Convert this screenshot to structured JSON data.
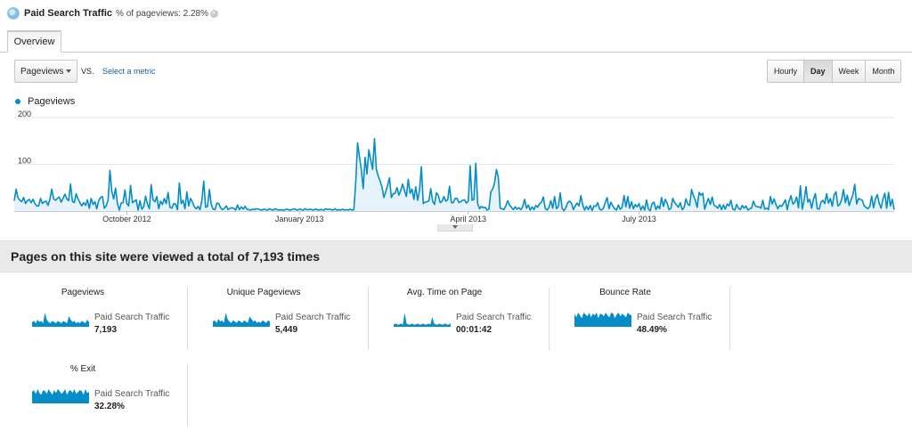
{
  "segment": {
    "title": "Paid Search Traffic",
    "subtitle": "% of pageviews: 2.28%",
    "icon": "segment-pie-icon"
  },
  "tabs": [
    {
      "label": "Overview",
      "selected": true
    }
  ],
  "metric_selector": {
    "selected": "Pageviews",
    "vs_label": "VS.",
    "select_metric_label": "Select a metric"
  },
  "granularity": {
    "options": [
      "Hourly",
      "Day",
      "Week",
      "Month"
    ],
    "selected": "Day"
  },
  "colors": {
    "series": "#058dc7",
    "area": "#e6f3fa"
  },
  "chart_data": {
    "type": "area",
    "series": [
      {
        "name": "Pageviews",
        "values": [
          22,
          47,
          28,
          23,
          20,
          29,
          16,
          22,
          25,
          18,
          25,
          16,
          11,
          11,
          27,
          16,
          20,
          21,
          12,
          25,
          47,
          26,
          23,
          27,
          30,
          19,
          27,
          36,
          26,
          22,
          58,
          21,
          18,
          37,
          26,
          18,
          11,
          18,
          12,
          24,
          6,
          27,
          14,
          20,
          5,
          22,
          29,
          31,
          6,
          11,
          23,
          87,
          42,
          26,
          49,
          16,
          2,
          17,
          18,
          45,
          16,
          11,
          55,
          18,
          21,
          24,
          2,
          22,
          4,
          9,
          32,
          15,
          5,
          56,
          24,
          20,
          31,
          5,
          21,
          14,
          27,
          16,
          40,
          8,
          6,
          16,
          15,
          3,
          60,
          16,
          23,
          5,
          41,
          11,
          27,
          19,
          9,
          5,
          10,
          3,
          23,
          64,
          8,
          10,
          46,
          14,
          4,
          3,
          17,
          16,
          7,
          3,
          6,
          11,
          3,
          6,
          7,
          6,
          2,
          13,
          3,
          9,
          4,
          10,
          4,
          3,
          2,
          4,
          3,
          5,
          4,
          3,
          2,
          4,
          3,
          2,
          5,
          3,
          2,
          5,
          3,
          2,
          3,
          2,
          2,
          4,
          3,
          2,
          3,
          5,
          3,
          2,
          4,
          3,
          2,
          5,
          3,
          3,
          4,
          2,
          3,
          4,
          2,
          3,
          3,
          2,
          5,
          3,
          4,
          3,
          2,
          5,
          2,
          3,
          2,
          4,
          2,
          3,
          2,
          4,
          2,
          3,
          60,
          146,
          116,
          88,
          48,
          115,
          79,
          131,
          109,
          89,
          155,
          89,
          75,
          64,
          52,
          29,
          41,
          55,
          71,
          29,
          37,
          38,
          50,
          34,
          44,
          58,
          44,
          31,
          68,
          38,
          47,
          25,
          52,
          23,
          44,
          95,
          16,
          19,
          20,
          22,
          48,
          21,
          14,
          39,
          34,
          18,
          21,
          31,
          21,
          24,
          53,
          18,
          18,
          27,
          27,
          18,
          20,
          23,
          24,
          17,
          21,
          97,
          23,
          25,
          102,
          16,
          5,
          10,
          7,
          8,
          2,
          4,
          41,
          47,
          60,
          89,
          72,
          6,
          5,
          3,
          11,
          22,
          13,
          8,
          3,
          9,
          4,
          7,
          3,
          9,
          25,
          6,
          13,
          2,
          9,
          3,
          12,
          8,
          16,
          19,
          30,
          6,
          2,
          8,
          22,
          6,
          31,
          5,
          10,
          39,
          6,
          1,
          7,
          18,
          21,
          17,
          3,
          11,
          17,
          11,
          33,
          13,
          2,
          10,
          3,
          12,
          1,
          11,
          10,
          18,
          4,
          2,
          6,
          18,
          29,
          5,
          19,
          11,
          5,
          2,
          13,
          4,
          8,
          33,
          9,
          31,
          6,
          20,
          5,
          14,
          9,
          16,
          2,
          11,
          2,
          24,
          4,
          1,
          16,
          19,
          3,
          11,
          5,
          29,
          10,
          25,
          17,
          3,
          6,
          27,
          18,
          13,
          8,
          18,
          3,
          7,
          26,
          15,
          12,
          46,
          33,
          23,
          8,
          40,
          34,
          38,
          4,
          17,
          27,
          14,
          30,
          12,
          10,
          6,
          14,
          3,
          13,
          4,
          15,
          11,
          23,
          4,
          2,
          14,
          6,
          3,
          12,
          6,
          11,
          2,
          5,
          6,
          21,
          11,
          9,
          9,
          6,
          23,
          4,
          6,
          3,
          31,
          15,
          26,
          14,
          5,
          12,
          10,
          16,
          24,
          3,
          21,
          33,
          15,
          19,
          30,
          7,
          54,
          4,
          23,
          52,
          19,
          25,
          6,
          26,
          37,
          5,
          4,
          19,
          23,
          16,
          37,
          17,
          27,
          10,
          35,
          41,
          11,
          14,
          25,
          46,
          18,
          34,
          12,
          24,
          35,
          57,
          15,
          27,
          25,
          23,
          11,
          8,
          5,
          10,
          32,
          7,
          26,
          35,
          17,
          6,
          26,
          38,
          6,
          40,
          11,
          25,
          3
        ]
      }
    ],
    "y_ticks": [
      "200",
      "100"
    ],
    "ylim": [
      0,
      200
    ],
    "x_ticks": [
      {
        "label": "October 2012",
        "index": 60
      },
      {
        "label": "January 2013",
        "index": 152
      },
      {
        "label": "April 2013",
        "index": 242
      },
      {
        "label": "July 2013",
        "index": 333
      }
    ],
    "grid": true,
    "legend": "top-left"
  },
  "summary": {
    "text": "Pages on this site were viewed a total of 7,193 times"
  },
  "metrics": [
    {
      "name": "Pageviews",
      "segment": "Paid Search Traffic",
      "value": "7,193",
      "spark": [
        4,
        5,
        3,
        6,
        4,
        5,
        3,
        12,
        6,
        4,
        3,
        5,
        4,
        3,
        5,
        4,
        3,
        5,
        4,
        3,
        9,
        6,
        4,
        5,
        3,
        4,
        3,
        5,
        4,
        3,
        6,
        4
      ]
    },
    {
      "name": "Unique Pageviews",
      "segment": "Paid Search Traffic",
      "value": "5,449",
      "spark": [
        4,
        5,
        3,
        6,
        4,
        5,
        3,
        11,
        6,
        4,
        3,
        5,
        4,
        3,
        5,
        4,
        3,
        5,
        4,
        3,
        8,
        6,
        4,
        5,
        3,
        4,
        3,
        5,
        4,
        3,
        5,
        4
      ]
    },
    {
      "name": "Avg. Time on Page",
      "segment": "Paid Search Traffic",
      "value": "00:01:42",
      "spark": [
        2,
        3,
        2,
        2,
        3,
        2,
        13,
        3,
        2,
        2,
        3,
        2,
        2,
        3,
        2,
        2,
        3,
        2,
        2,
        3,
        2,
        9,
        3,
        2,
        2,
        3,
        2,
        2,
        3,
        2,
        2,
        3
      ]
    },
    {
      "name": "Bounce Rate",
      "segment": "Paid Search Traffic",
      "value": "48.49%",
      "spark": [
        14,
        10,
        15,
        12,
        9,
        15,
        13,
        11,
        15,
        10,
        14,
        12,
        15,
        9,
        14,
        13,
        11,
        15,
        12,
        10,
        15,
        14,
        9,
        13,
        15,
        11,
        14,
        12,
        10,
        15,
        13,
        12
      ]
    },
    {
      "name": "% Exit",
      "segment": "Paid Search Traffic",
      "value": "32.28%",
      "spark": [
        12,
        14,
        10,
        15,
        11,
        9,
        14,
        13,
        10,
        15,
        12,
        9,
        14,
        11,
        15,
        13,
        10,
        12,
        15,
        9,
        13,
        14,
        11,
        15,
        10,
        12,
        14,
        13,
        9,
        15,
        11,
        12
      ]
    }
  ]
}
